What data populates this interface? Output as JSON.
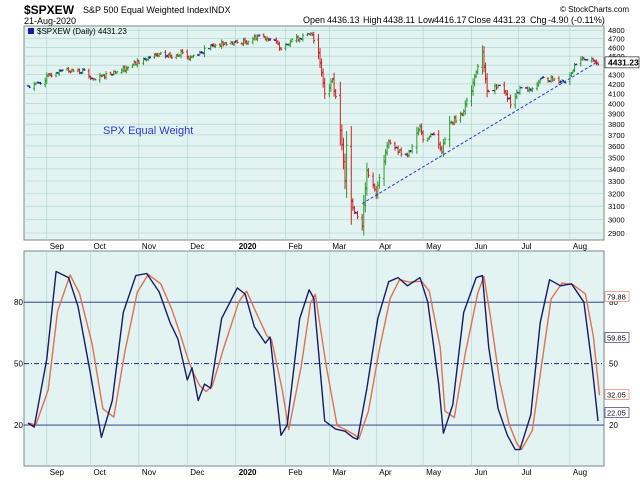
{
  "header": {
    "symbol": "$SPXEW",
    "description": "S&P 500 Equal Weighted Index",
    "exchange": "INDX",
    "date": "21-Aug-2020",
    "open_label": "Open",
    "open": "4436.13",
    "high_label": "High",
    "high": "4438.11",
    "low_label": "Low",
    "low": "4416.17",
    "close_label": "Close",
    "close": "4431.23",
    "chg_label": "Chg",
    "chg": "-4.90 (-0.11%)",
    "watermark": "© StockCharts.com"
  },
  "colors": {
    "panel_bg": "#e2f3f1",
    "grid": "#a8d4d0",
    "frame": "#7a8a8a",
    "up": "#2e9a2e",
    "down": "#cc2222",
    "neutral": "#1a1aa8",
    "stoch_fast": "#1a1a66",
    "stoch_slow": "#e07050",
    "trend": "#2a3ad0",
    "label_text": "#2a3ad0"
  },
  "chart_data": [
    {
      "type": "candlestick",
      "legend": "$SPXEW (Daily) 4431.23",
      "annotation": "SPX Equal Weight",
      "last_value_label": "4431.23",
      "y_scale": "log",
      "y_ticks": [
        2900,
        3000,
        3100,
        3200,
        3300,
        3400,
        3500,
        3600,
        3700,
        3800,
        3900,
        4000,
        4100,
        4200,
        4300,
        4400,
        4500,
        4600,
        4700,
        4800
      ],
      "ylim": [
        2850,
        4850
      ],
      "x_ticks": [
        "Sep",
        "Oct",
        "Nov",
        "Dec",
        "2020",
        "Feb",
        "Mar",
        "Apr",
        "May",
        "Jun",
        "Jul",
        "Aug"
      ],
      "period": [
        "2019-08-22",
        "2020-08-21"
      ],
      "trend_line": {
        "from": {
          "date": "2020-03-23",
          "value": 3120
        },
        "to": {
          "date": "2020-08-21",
          "value": 4440
        }
      },
      "close_anchors": [
        [
          "2019-08-22",
          4180
        ],
        [
          "2019-08-29",
          4210
        ],
        [
          "2019-09-06",
          4300
        ],
        [
          "2019-09-13",
          4360
        ],
        [
          "2019-09-20",
          4340
        ],
        [
          "2019-09-27",
          4330
        ],
        [
          "2019-10-03",
          4230
        ],
        [
          "2019-10-11",
          4300
        ],
        [
          "2019-10-18",
          4340
        ],
        [
          "2019-10-25",
          4380
        ],
        [
          "2019-11-01",
          4440
        ],
        [
          "2019-11-08",
          4480
        ],
        [
          "2019-11-15",
          4510
        ],
        [
          "2019-11-22",
          4500
        ],
        [
          "2019-11-29",
          4550
        ],
        [
          "2019-12-03",
          4480
        ],
        [
          "2019-12-13",
          4570
        ],
        [
          "2019-12-20",
          4630
        ],
        [
          "2019-12-31",
          4650
        ],
        [
          "2020-01-08",
          4660
        ],
        [
          "2020-01-17",
          4740
        ],
        [
          "2020-01-24",
          4700
        ],
        [
          "2020-01-31",
          4600
        ],
        [
          "2020-02-07",
          4690
        ],
        [
          "2020-02-14",
          4720
        ],
        [
          "2020-02-20",
          4750
        ],
        [
          "2020-02-24",
          4550
        ],
        [
          "2020-02-28",
          4100
        ],
        [
          "2020-03-04",
          4250
        ],
        [
          "2020-03-09",
          3750
        ],
        [
          "2020-03-12",
          3300
        ],
        [
          "2020-03-13",
          3600
        ],
        [
          "2020-03-16",
          3150
        ],
        [
          "2020-03-18",
          3050
        ],
        [
          "2020-03-23",
          2960
        ],
        [
          "2020-03-26",
          3400
        ],
        [
          "2020-04-01",
          3200
        ],
        [
          "2020-04-09",
          3650
        ],
        [
          "2020-04-15",
          3550
        ],
        [
          "2020-04-21",
          3500
        ],
        [
          "2020-04-29",
          3800
        ],
        [
          "2020-05-01",
          3650
        ],
        [
          "2020-05-08",
          3720
        ],
        [
          "2020-05-13",
          3560
        ],
        [
          "2020-05-18",
          3800
        ],
        [
          "2020-05-26",
          3900
        ],
        [
          "2020-06-01",
          4150
        ],
        [
          "2020-06-08",
          4560
        ],
        [
          "2020-06-11",
          4100
        ],
        [
          "2020-06-19",
          4200
        ],
        [
          "2020-06-26",
          4000
        ],
        [
          "2020-07-02",
          4150
        ],
        [
          "2020-07-10",
          4130
        ],
        [
          "2020-07-15",
          4250
        ],
        [
          "2020-07-24",
          4250
        ],
        [
          "2020-07-31",
          4230
        ],
        [
          "2020-08-07",
          4400
        ],
        [
          "2020-08-12",
          4480
        ],
        [
          "2020-08-17",
          4450
        ],
        [
          "2020-08-21",
          4431
        ]
      ]
    },
    {
      "type": "line",
      "ylim": [
        0,
        105
      ],
      "y_ticks": [
        20,
        50,
        80
      ],
      "last_value_labels": [
        "79.88",
        "59.85",
        "32.05",
        "22.05"
      ],
      "x_ticks": [
        "Sep",
        "Oct",
        "Nov",
        "Dec",
        "2020",
        "Feb",
        "Mar",
        "Apr",
        "May",
        "Jun",
        "Jul",
        "Aug"
      ],
      "series_anchors": [
        [
          "2019-08-22",
          21
        ],
        [
          "2019-08-26",
          19
        ],
        [
          "2019-09-03",
          52
        ],
        [
          "2019-09-09",
          95
        ],
        [
          "2019-09-17",
          92
        ],
        [
          "2019-09-23",
          78
        ],
        [
          "2019-10-01",
          45
        ],
        [
          "2019-10-08",
          14
        ],
        [
          "2019-10-15",
          32
        ],
        [
          "2019-10-22",
          75
        ],
        [
          "2019-10-30",
          93
        ],
        [
          "2019-11-06",
          94
        ],
        [
          "2019-11-14",
          85
        ],
        [
          "2019-11-21",
          70
        ],
        [
          "2019-11-26",
          62
        ],
        [
          "2019-12-02",
          42
        ],
        [
          "2019-12-05",
          48
        ],
        [
          "2019-12-09",
          32
        ],
        [
          "2019-12-13",
          40
        ],
        [
          "2019-12-17",
          38
        ],
        [
          "2019-12-24",
          72
        ],
        [
          "2020-01-03",
          87
        ],
        [
          "2020-01-08",
          84
        ],
        [
          "2020-01-14",
          68
        ],
        [
          "2020-01-21",
          60
        ],
        [
          "2020-01-24",
          63
        ],
        [
          "2020-01-31",
          15
        ],
        [
          "2020-02-04",
          20
        ],
        [
          "2020-02-12",
          72
        ],
        [
          "2020-02-18",
          86
        ],
        [
          "2020-02-21",
          82
        ],
        [
          "2020-02-28",
          22
        ],
        [
          "2020-03-06",
          18
        ],
        [
          "2020-03-12",
          17
        ],
        [
          "2020-03-17",
          14
        ],
        [
          "2020-03-20",
          13
        ],
        [
          "2020-03-26",
          38
        ],
        [
          "2020-04-02",
          72
        ],
        [
          "2020-04-09",
          90
        ],
        [
          "2020-04-15",
          92
        ],
        [
          "2020-04-21",
          88
        ],
        [
          "2020-04-29",
          92
        ],
        [
          "2020-05-04",
          80
        ],
        [
          "2020-05-11",
          40
        ],
        [
          "2020-05-14",
          16
        ],
        [
          "2020-05-20",
          30
        ],
        [
          "2020-05-27",
          75
        ],
        [
          "2020-06-04",
          92
        ],
        [
          "2020-06-08",
          93
        ],
        [
          "2020-06-12",
          58
        ],
        [
          "2020-06-18",
          28
        ],
        [
          "2020-06-24",
          15
        ],
        [
          "2020-06-29",
          8
        ],
        [
          "2020-07-02",
          8
        ],
        [
          "2020-07-09",
          25
        ],
        [
          "2020-07-15",
          70
        ],
        [
          "2020-07-21",
          91
        ],
        [
          "2020-07-28",
          88
        ],
        [
          "2020-08-04",
          89
        ],
        [
          "2020-08-12",
          80
        ],
        [
          "2020-08-17",
          50
        ],
        [
          "2020-08-21",
          22
        ]
      ]
    }
  ]
}
